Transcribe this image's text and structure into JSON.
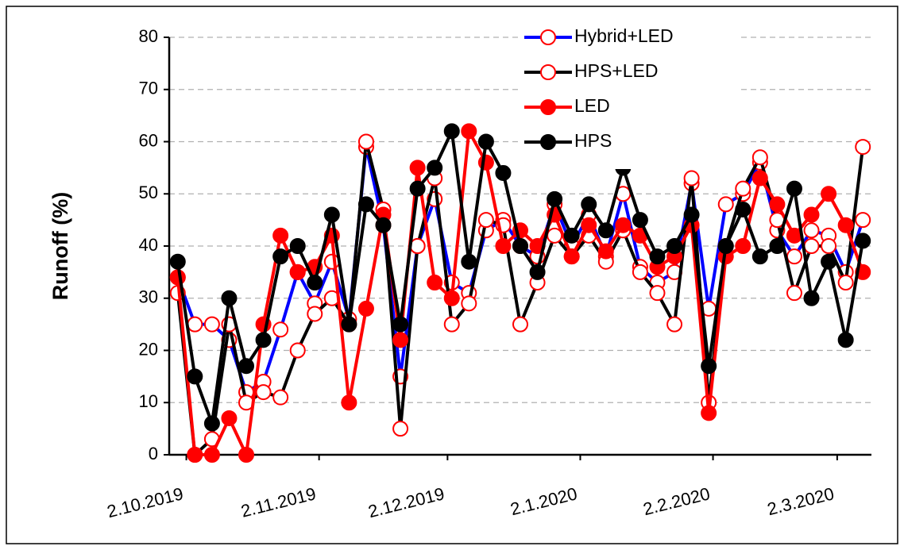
{
  "chart_data": {
    "type": "line",
    "ylabel": "Runoff (%)",
    "x": [
      "2019-09-30",
      "2019-10-04",
      "2019-10-08",
      "2019-10-12",
      "2019-10-16",
      "2019-10-20",
      "2019-10-24",
      "2019-10-28",
      "2019-11-01",
      "2019-11-05",
      "2019-11-09",
      "2019-11-13",
      "2019-11-17",
      "2019-11-21",
      "2019-11-25",
      "2019-11-29",
      "2019-12-03",
      "2019-12-07",
      "2019-12-11",
      "2019-12-15",
      "2019-12-19",
      "2019-12-23",
      "2019-12-27",
      "2019-12-31",
      "2020-01-04",
      "2020-01-08",
      "2020-01-12",
      "2020-01-16",
      "2020-01-20",
      "2020-01-24",
      "2020-01-28",
      "2020-02-01",
      "2020-02-05",
      "2020-02-09",
      "2020-02-13",
      "2020-02-17",
      "2020-02-21",
      "2020-02-25",
      "2020-02-29",
      "2020-03-04",
      "2020-03-08"
    ],
    "series": [
      {
        "name": "Hybrid+LED",
        "color": "#0000ff",
        "marker_color": "#ff0000",
        "marker_filled": false,
        "values": [
          34,
          25,
          25,
          22,
          12,
          14,
          24,
          35,
          29,
          37,
          26,
          59,
          44,
          15,
          40,
          49,
          33,
          31,
          43,
          45,
          40,
          38,
          48,
          40,
          46,
          38,
          50,
          36,
          33,
          35,
          52,
          28,
          48,
          50,
          56,
          43,
          38,
          43,
          42,
          35,
          45
        ]
      },
      {
        "name": "HPS+LED",
        "color": "#000000",
        "marker_color": "#ff0000",
        "marker_filled": false,
        "values": [
          31,
          0,
          3,
          25,
          10,
          12,
          11,
          20,
          27,
          30,
          25,
          60,
          47,
          5,
          40,
          53,
          25,
          29,
          45,
          44,
          25,
          33,
          42,
          38,
          42,
          37,
          43,
          35,
          31,
          25,
          53,
          10,
          40,
          51,
          57,
          45,
          31,
          40,
          40,
          33,
          59
        ]
      },
      {
        "name": "LED",
        "color": "#ff0000",
        "marker_color": "#ff0000",
        "marker_filled": true,
        "values": [
          34,
          0,
          0,
          7,
          0,
          25,
          42,
          35,
          36,
          42,
          10,
          28,
          46,
          22,
          55,
          33,
          30,
          62,
          56,
          40,
          43,
          40,
          46,
          38,
          44,
          39,
          44,
          42,
          36,
          38,
          44,
          8,
          38,
          40,
          53,
          48,
          42,
          46,
          50,
          44,
          35
        ]
      },
      {
        "name": "HPS",
        "color": "#000000",
        "marker_color": "#000000",
        "marker_filled": true,
        "values": [
          37,
          15,
          6,
          30,
          17,
          22,
          38,
          40,
          33,
          46,
          25,
          48,
          44,
          25,
          51,
          55,
          62,
          37,
          60,
          54,
          40,
          35,
          49,
          42,
          48,
          43,
          55,
          45,
          38,
          40,
          46,
          17,
          40,
          47,
          38,
          40,
          51,
          30,
          37,
          22,
          41
        ]
      }
    ],
    "xlim": [
      "2019-09-28",
      "2020-03-10"
    ],
    "xticks": [
      {
        "value": "2019-10-02",
        "label": "2.10.2019"
      },
      {
        "value": "2019-11-02",
        "label": "2.11.2019"
      },
      {
        "value": "2019-12-02",
        "label": "2.12.2019"
      },
      {
        "value": "2020-01-02",
        "label": "2.1.2020"
      },
      {
        "value": "2020-02-02",
        "label": "2.2.2020"
      },
      {
        "value": "2020-03-02",
        "label": "2.3.2020"
      }
    ],
    "ylim": [
      0,
      80
    ],
    "yticks": [
      0,
      10,
      20,
      30,
      40,
      50,
      60,
      70,
      80
    ],
    "grid": true,
    "legend": "top-right"
  }
}
